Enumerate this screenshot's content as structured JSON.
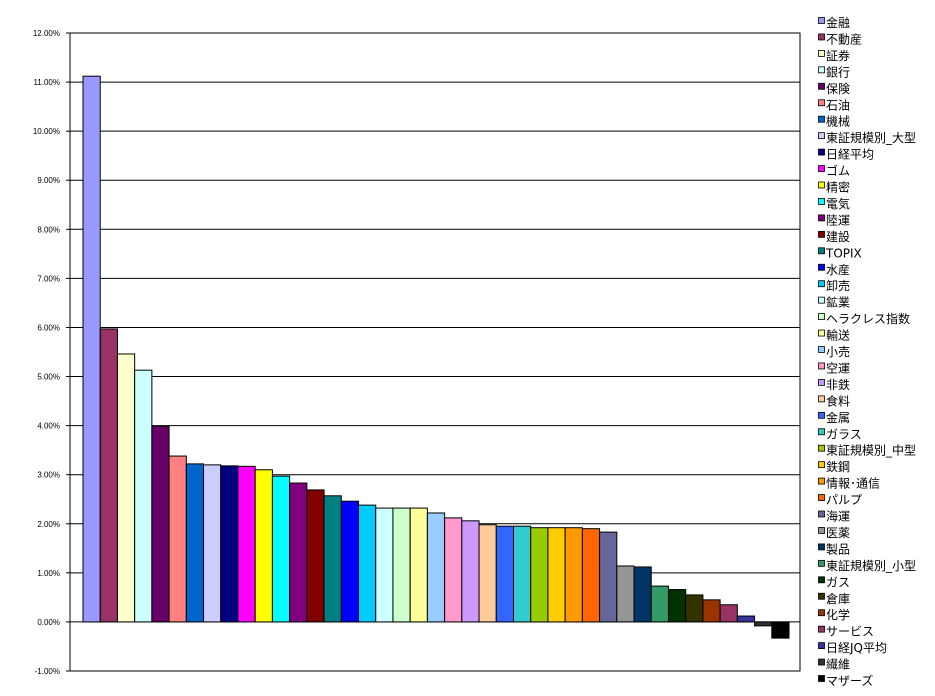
{
  "chart_data": {
    "type": "bar",
    "title": "",
    "xlabel": "",
    "ylabel": "",
    "ylim": [
      -1,
      12
    ],
    "y_tick_step": 1,
    "y_tick_format": "percent_2dp",
    "y_ticks": [
      "12.00%",
      "11.00%",
      "10.00%",
      "9.00%",
      "8.00%",
      "7.00%",
      "6.00%",
      "5.00%",
      "4.00%",
      "3.00%",
      "2.00%",
      "1.00%",
      "0.00%",
      "-1.00%"
    ],
    "grid": true,
    "legend_position": "right",
    "series": [
      {
        "name": "金融",
        "value": 11.12,
        "color": "#9999FF"
      },
      {
        "name": "不動産",
        "value": 5.97,
        "color": "#993366"
      },
      {
        "name": "証券",
        "value": 5.46,
        "color": "#FFFFCC"
      },
      {
        "name": "銀行",
        "value": 5.13,
        "color": "#CCFFFF"
      },
      {
        "name": "保険",
        "value": 3.99,
        "color": "#660066"
      },
      {
        "name": "石油",
        "value": 3.38,
        "color": "#FF8080"
      },
      {
        "name": "機械",
        "value": 3.22,
        "color": "#0066CC"
      },
      {
        "name": "東証規模別_大型",
        "value": 3.2,
        "color": "#CCCCFF"
      },
      {
        "name": "日経平均",
        "value": 3.18,
        "color": "#000080"
      },
      {
        "name": "ゴム",
        "value": 3.17,
        "color": "#FF00FF"
      },
      {
        "name": "精密",
        "value": 3.1,
        "color": "#FFFF00"
      },
      {
        "name": "電気",
        "value": 2.97,
        "color": "#00FFFF"
      },
      {
        "name": "陸運",
        "value": 2.83,
        "color": "#800080"
      },
      {
        "name": "建設",
        "value": 2.69,
        "color": "#800000"
      },
      {
        "name": "TOPIX",
        "value": 2.57,
        "color": "#008080"
      },
      {
        "name": "水産",
        "value": 2.46,
        "color": "#0000FF"
      },
      {
        "name": "卸売",
        "value": 2.38,
        "color": "#00CCFF"
      },
      {
        "name": "鉱業",
        "value": 2.32,
        "color": "#CCFFFF"
      },
      {
        "name": "ヘラクレス指数",
        "value": 2.32,
        "color": "#CCFFCC"
      },
      {
        "name": "輸送",
        "value": 2.32,
        "color": "#FFFF99"
      },
      {
        "name": "小売",
        "value": 2.22,
        "color": "#99CCFF"
      },
      {
        "name": "空運",
        "value": 2.12,
        "color": "#FF99CC"
      },
      {
        "name": "非鉄",
        "value": 2.06,
        "color": "#CC99FF"
      },
      {
        "name": "食料",
        "value": 1.98,
        "color": "#FFCC99"
      },
      {
        "name": "金属",
        "value": 1.95,
        "color": "#3366FF"
      },
      {
        "name": "ガラス",
        "value": 1.95,
        "color": "#33CCCC"
      },
      {
        "name": "東証規模別_中型",
        "value": 1.92,
        "color": "#99CC00"
      },
      {
        "name": "鉄鋼",
        "value": 1.92,
        "color": "#FFCC00"
      },
      {
        "name": "情報･通信",
        "value": 1.92,
        "color": "#FF9900"
      },
      {
        "name": "パルプ",
        "value": 1.9,
        "color": "#FF6600"
      },
      {
        "name": "海運",
        "value": 1.83,
        "color": "#666699"
      },
      {
        "name": "医薬",
        "value": 1.14,
        "color": "#969696"
      },
      {
        "name": "製品",
        "value": 1.12,
        "color": "#003366"
      },
      {
        "name": "東証規模別_小型",
        "value": 0.73,
        "color": "#339966"
      },
      {
        "name": "ガス",
        "value": 0.66,
        "color": "#003300"
      },
      {
        "name": "倉庫",
        "value": 0.55,
        "color": "#333300"
      },
      {
        "name": "化学",
        "value": 0.45,
        "color": "#993300"
      },
      {
        "name": "サービス",
        "value": 0.35,
        "color": "#993366"
      },
      {
        "name": "日経JQ平均",
        "value": 0.12,
        "color": "#333399"
      },
      {
        "name": "繊維",
        "value": -0.08,
        "color": "#333333"
      },
      {
        "name": "マザーズ",
        "value": -0.33,
        "color": "#000000"
      }
    ]
  }
}
